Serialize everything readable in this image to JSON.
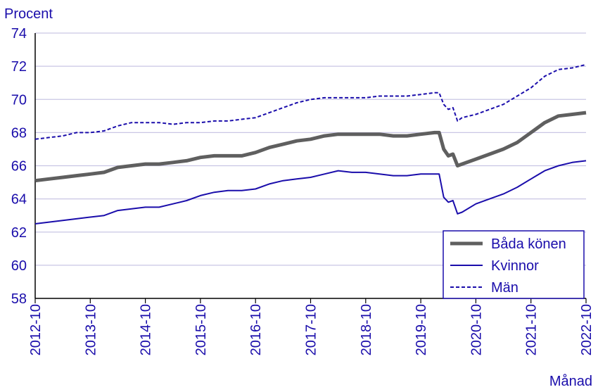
{
  "chart_data": {
    "type": "line",
    "ylabel": "Procent",
    "xlabel": "Månad",
    "ylim": [
      58,
      74
    ],
    "yticks": [
      58,
      60,
      62,
      64,
      66,
      68,
      70,
      72,
      74
    ],
    "xticks": [
      "2012-10",
      "2013-10",
      "2014-10",
      "2015-10",
      "2016-10",
      "2017-10",
      "2018-10",
      "2019-10",
      "2020-10",
      "2021-10",
      "2022-10"
    ],
    "grid": "horizontal",
    "legend_position": "bottom-right",
    "colors": {
      "axis_text": "#1a0dab",
      "grid": "#c9c6e4",
      "legend_border": "#1a0dab"
    },
    "series": [
      {
        "name": "Båda könen",
        "color": "#5f5f5f",
        "style": "solid-thick",
        "points": [
          [
            "2012-10",
            65.1
          ],
          [
            "2013-01",
            65.2
          ],
          [
            "2013-04",
            65.3
          ],
          [
            "2013-07",
            65.4
          ],
          [
            "2013-10",
            65.5
          ],
          [
            "2014-01",
            65.6
          ],
          [
            "2014-04",
            65.9
          ],
          [
            "2014-07",
            66.0
          ],
          [
            "2014-10",
            66.1
          ],
          [
            "2015-01",
            66.1
          ],
          [
            "2015-04",
            66.2
          ],
          [
            "2015-07",
            66.3
          ],
          [
            "2015-10",
            66.5
          ],
          [
            "2016-01",
            66.6
          ],
          [
            "2016-04",
            66.6
          ],
          [
            "2016-07",
            66.6
          ],
          [
            "2016-10",
            66.8
          ],
          [
            "2017-01",
            67.1
          ],
          [
            "2017-04",
            67.3
          ],
          [
            "2017-07",
            67.5
          ],
          [
            "2017-10",
            67.6
          ],
          [
            "2018-01",
            67.8
          ],
          [
            "2018-04",
            67.9
          ],
          [
            "2018-07",
            67.9
          ],
          [
            "2018-10",
            67.9
          ],
          [
            "2019-01",
            67.9
          ],
          [
            "2019-04",
            67.8
          ],
          [
            "2019-07",
            67.8
          ],
          [
            "2019-10",
            67.9
          ],
          [
            "2020-01",
            68.0
          ],
          [
            "2020-02",
            68.0
          ],
          [
            "2020-03",
            67.0
          ],
          [
            "2020-04",
            66.6
          ],
          [
            "2020-05",
            66.7
          ],
          [
            "2020-06",
            66.0
          ],
          [
            "2020-07",
            66.1
          ],
          [
            "2020-10",
            66.4
          ],
          [
            "2021-01",
            66.7
          ],
          [
            "2021-04",
            67.0
          ],
          [
            "2021-07",
            67.4
          ],
          [
            "2021-10",
            68.0
          ],
          [
            "2022-01",
            68.6
          ],
          [
            "2022-04",
            69.0
          ],
          [
            "2022-07",
            69.1
          ],
          [
            "2022-10",
            69.2
          ]
        ]
      },
      {
        "name": "Kvinnor",
        "color": "#1a0dab",
        "style": "solid",
        "points": [
          [
            "2012-10",
            62.5
          ],
          [
            "2013-01",
            62.6
          ],
          [
            "2013-04",
            62.7
          ],
          [
            "2013-07",
            62.8
          ],
          [
            "2013-10",
            62.9
          ],
          [
            "2014-01",
            63.0
          ],
          [
            "2014-04",
            63.3
          ],
          [
            "2014-07",
            63.4
          ],
          [
            "2014-10",
            63.5
          ],
          [
            "2015-01",
            63.5
          ],
          [
            "2015-04",
            63.7
          ],
          [
            "2015-07",
            63.9
          ],
          [
            "2015-10",
            64.2
          ],
          [
            "2016-01",
            64.4
          ],
          [
            "2016-04",
            64.5
          ],
          [
            "2016-07",
            64.5
          ],
          [
            "2016-10",
            64.6
          ],
          [
            "2017-01",
            64.9
          ],
          [
            "2017-04",
            65.1
          ],
          [
            "2017-07",
            65.2
          ],
          [
            "2017-10",
            65.3
          ],
          [
            "2018-01",
            65.5
          ],
          [
            "2018-04",
            65.7
          ],
          [
            "2018-07",
            65.6
          ],
          [
            "2018-10",
            65.6
          ],
          [
            "2019-01",
            65.5
          ],
          [
            "2019-04",
            65.4
          ],
          [
            "2019-07",
            65.4
          ],
          [
            "2019-10",
            65.5
          ],
          [
            "2020-01",
            65.5
          ],
          [
            "2020-02",
            65.5
          ],
          [
            "2020-03",
            64.1
          ],
          [
            "2020-04",
            63.8
          ],
          [
            "2020-05",
            63.9
          ],
          [
            "2020-06",
            63.1
          ],
          [
            "2020-07",
            63.2
          ],
          [
            "2020-10",
            63.7
          ],
          [
            "2021-01",
            64.0
          ],
          [
            "2021-04",
            64.3
          ],
          [
            "2021-07",
            64.7
          ],
          [
            "2021-10",
            65.2
          ],
          [
            "2022-01",
            65.7
          ],
          [
            "2022-04",
            66.0
          ],
          [
            "2022-07",
            66.2
          ],
          [
            "2022-10",
            66.3
          ]
        ]
      },
      {
        "name": "Män",
        "color": "#1a0dab",
        "style": "dashed",
        "points": [
          [
            "2012-10",
            67.6
          ],
          [
            "2013-01",
            67.7
          ],
          [
            "2013-04",
            67.8
          ],
          [
            "2013-07",
            68.0
          ],
          [
            "2013-10",
            68.0
          ],
          [
            "2014-01",
            68.1
          ],
          [
            "2014-04",
            68.4
          ],
          [
            "2014-07",
            68.6
          ],
          [
            "2014-10",
            68.6
          ],
          [
            "2015-01",
            68.6
          ],
          [
            "2015-04",
            68.5
          ],
          [
            "2015-07",
            68.6
          ],
          [
            "2015-10",
            68.6
          ],
          [
            "2016-01",
            68.7
          ],
          [
            "2016-04",
            68.7
          ],
          [
            "2016-07",
            68.8
          ],
          [
            "2016-10",
            68.9
          ],
          [
            "2017-01",
            69.2
          ],
          [
            "2017-04",
            69.5
          ],
          [
            "2017-07",
            69.8
          ],
          [
            "2017-10",
            70.0
          ],
          [
            "2018-01",
            70.1
          ],
          [
            "2018-04",
            70.1
          ],
          [
            "2018-07",
            70.1
          ],
          [
            "2018-10",
            70.1
          ],
          [
            "2019-01",
            70.2
          ],
          [
            "2019-04",
            70.2
          ],
          [
            "2019-07",
            70.2
          ],
          [
            "2019-10",
            70.3
          ],
          [
            "2020-01",
            70.4
          ],
          [
            "2020-02",
            70.4
          ],
          [
            "2020-03",
            69.7
          ],
          [
            "2020-04",
            69.4
          ],
          [
            "2020-05",
            69.5
          ],
          [
            "2020-06",
            68.7
          ],
          [
            "2020-07",
            68.9
          ],
          [
            "2020-10",
            69.1
          ],
          [
            "2021-01",
            69.4
          ],
          [
            "2021-04",
            69.7
          ],
          [
            "2021-07",
            70.2
          ],
          [
            "2021-10",
            70.7
          ],
          [
            "2022-01",
            71.4
          ],
          [
            "2022-04",
            71.8
          ],
          [
            "2022-07",
            71.9
          ],
          [
            "2022-10",
            72.1
          ]
        ]
      }
    ]
  }
}
